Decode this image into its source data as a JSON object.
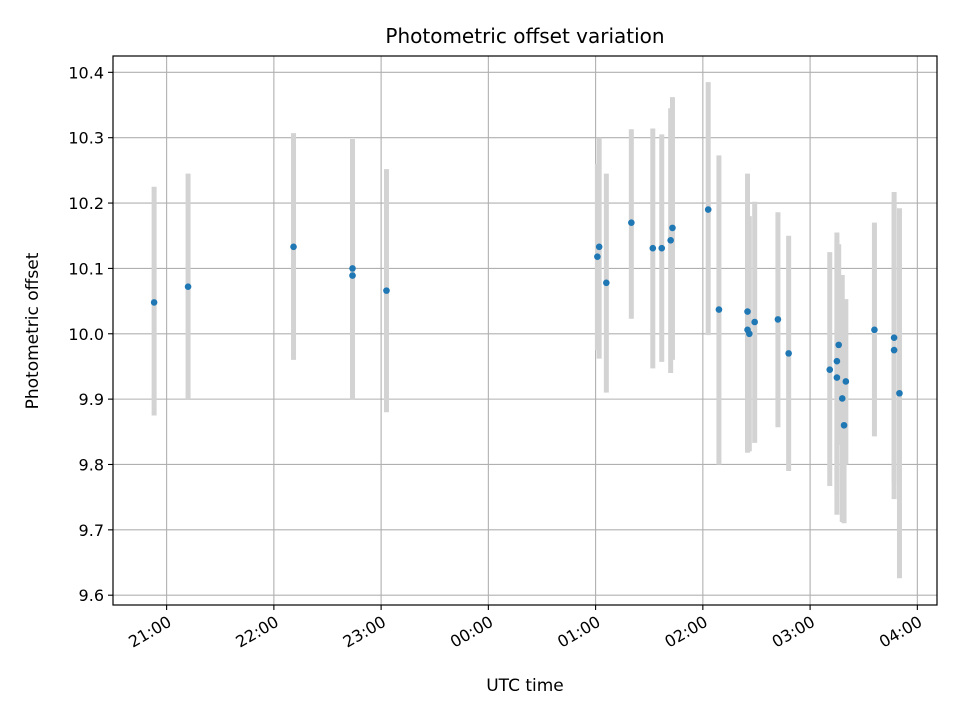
{
  "chart_data": {
    "type": "scatter",
    "title": "Photometric offset variation",
    "xlabel": "UTC time",
    "ylabel": "Photometric offset",
    "x_unit": "UTC time (HH:MM, spans midnight)",
    "xlim": [
      "20:30",
      "04:11"
    ],
    "ylim": [
      9.585,
      10.425
    ],
    "x_ticks": [
      "21:00",
      "22:00",
      "23:00",
      "00:00",
      "01:00",
      "02:00",
      "03:00",
      "04:00"
    ],
    "y_ticks": [
      "9.6",
      "9.7",
      "9.8",
      "9.9",
      "10.0",
      "10.1",
      "10.2",
      "10.3",
      "10.4"
    ],
    "grid": true,
    "colors": {
      "point": "#1f77b4",
      "errorbar": "#d3d3d3",
      "grid": "#b0b0b0",
      "axes": "#000000"
    },
    "series": [
      {
        "points": [
          {
            "x": "20:53",
            "y": 10.048,
            "ylow": 9.875,
            "yhigh": 10.225
          },
          {
            "x": "21:12",
            "y": 10.072,
            "ylow": 9.9,
            "yhigh": 10.245
          },
          {
            "x": "22:11",
            "y": 10.133,
            "ylow": 9.96,
            "yhigh": 10.307
          },
          {
            "x": "22:44",
            "y": 10.1,
            "ylow": 9.9,
            "yhigh": 10.298
          },
          {
            "x": "22:44",
            "y": 10.089,
            "ylow": 9.9,
            "yhigh": 10.298
          },
          {
            "x": "23:03",
            "y": 10.066,
            "ylow": 9.88,
            "yhigh": 10.252
          },
          {
            "x": "01:01",
            "y": 10.118,
            "ylow": 9.975,
            "yhigh": 10.26
          },
          {
            "x": "01:02",
            "y": 10.133,
            "ylow": 9.962,
            "yhigh": 10.3
          },
          {
            "x": "01:06",
            "y": 10.078,
            "ylow": 9.91,
            "yhigh": 10.245
          },
          {
            "x": "01:20",
            "y": 10.17,
            "ylow": 10.023,
            "yhigh": 10.313
          },
          {
            "x": "01:32",
            "y": 10.131,
            "ylow": 9.947,
            "yhigh": 10.314
          },
          {
            "x": "01:37",
            "y": 10.131,
            "ylow": 9.957,
            "yhigh": 10.305
          },
          {
            "x": "01:42",
            "y": 10.143,
            "ylow": 9.94,
            "yhigh": 10.345
          },
          {
            "x": "01:43",
            "y": 10.162,
            "ylow": 9.96,
            "yhigh": 10.362
          },
          {
            "x": "02:03",
            "y": 10.19,
            "ylow": 9.998,
            "yhigh": 10.385
          },
          {
            "x": "02:09",
            "y": 10.037,
            "ylow": 9.8,
            "yhigh": 10.273
          },
          {
            "x": "02:25",
            "y": 10.034,
            "ylow": 9.823,
            "yhigh": 10.245
          },
          {
            "x": "02:25",
            "y": 10.006,
            "ylow": 9.818,
            "yhigh": 10.193
          },
          {
            "x": "02:26",
            "y": 10.0,
            "ylow": 9.82,
            "yhigh": 10.18
          },
          {
            "x": "02:29",
            "y": 10.018,
            "ylow": 9.833,
            "yhigh": 10.202
          },
          {
            "x": "02:42",
            "y": 10.022,
            "ylow": 9.857,
            "yhigh": 10.186
          },
          {
            "x": "02:48",
            "y": 9.97,
            "ylow": 9.79,
            "yhigh": 10.15
          },
          {
            "x": "03:11",
            "y": 9.945,
            "ylow": 9.767,
            "yhigh": 10.125
          },
          {
            "x": "03:15",
            "y": 9.958,
            "ylow": 9.76,
            "yhigh": 10.155
          },
          {
            "x": "03:15",
            "y": 9.933,
            "ylow": 9.723,
            "yhigh": 10.143
          },
          {
            "x": "03:16",
            "y": 9.983,
            "ylow": 9.83,
            "yhigh": 10.137
          },
          {
            "x": "03:18",
            "y": 9.901,
            "ylow": 9.712,
            "yhigh": 10.09
          },
          {
            "x": "03:19",
            "y": 9.86,
            "ylow": 9.71,
            "yhigh": 10.01
          },
          {
            "x": "03:20",
            "y": 9.927,
            "ylow": 9.8,
            "yhigh": 10.053
          },
          {
            "x": "03:36",
            "y": 10.006,
            "ylow": 9.843,
            "yhigh": 10.17
          },
          {
            "x": "03:47",
            "y": 9.994,
            "ylow": 9.772,
            "yhigh": 10.217
          },
          {
            "x": "03:47",
            "y": 9.975,
            "ylow": 9.747,
            "yhigh": 10.202
          },
          {
            "x": "03:50",
            "y": 9.909,
            "ylow": 9.626,
            "yhigh": 10.192
          }
        ]
      }
    ]
  }
}
